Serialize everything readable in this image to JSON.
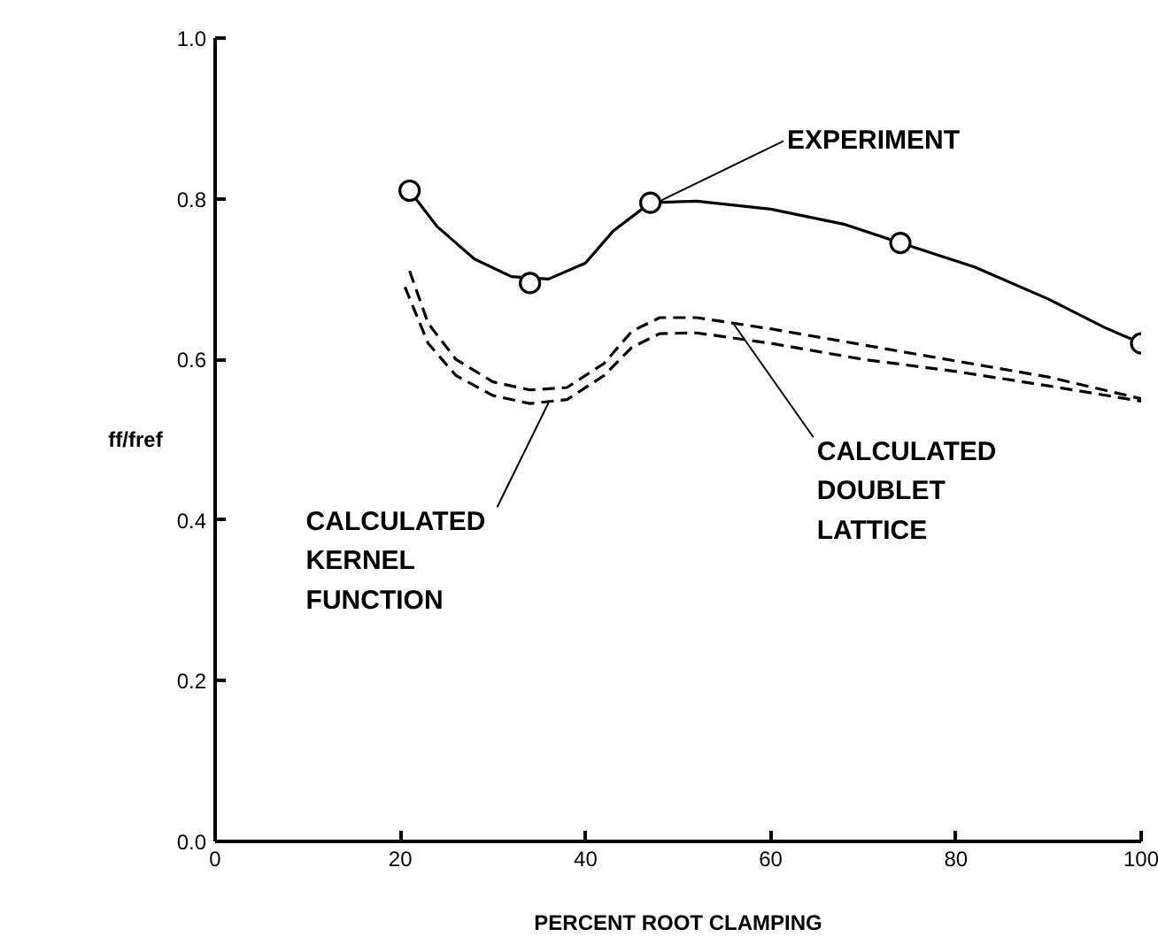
{
  "chart_data": {
    "type": "line",
    "xlabel": "PERCENT ROOT CLAMPING",
    "ylabel": "ff/fref",
    "xlim": [
      0,
      100
    ],
    "ylim": [
      0,
      1
    ],
    "xticks": [
      0,
      20,
      40,
      60,
      80,
      100
    ],
    "yticks": [
      {
        "value": 0,
        "label": "0.0"
      },
      0.2,
      0.4,
      0.6,
      0.8,
      {
        "value": 1,
        "label": "1.0"
      }
    ],
    "grid": false,
    "series": [
      {
        "color": "#000000",
        "line_style": "solid",
        "x": [
          21,
          24,
          28,
          32,
          36,
          40,
          43,
          47,
          52,
          60,
          68,
          74,
          82,
          90,
          96,
          100
        ],
        "values": [
          0.81,
          0.765,
          0.725,
          0.703,
          0.7,
          0.72,
          0.76,
          0.795,
          0.797,
          0.787,
          0.768,
          0.745,
          0.715,
          0.675,
          0.64,
          0.62
        ]
      },
      {
        "type": "scatter",
        "color": "#000000",
        "marker": "circle",
        "x": [
          21,
          34,
          47,
          74,
          100
        ],
        "values": [
          0.81,
          0.695,
          0.795,
          0.745,
          0.62
        ]
      },
      {
        "type": "line",
        "color": "#000000",
        "line_style": "dashed",
        "x": [
          20.5,
          23,
          26,
          30,
          34,
          38,
          42,
          45,
          48,
          52,
          60,
          70,
          80,
          90,
          100
        ],
        "values": [
          0.69,
          0.62,
          0.58,
          0.555,
          0.545,
          0.55,
          0.58,
          0.615,
          0.632,
          0.633,
          0.62,
          0.6,
          0.585,
          0.567,
          0.548
        ]
      },
      {
        "type": "line",
        "color": "#000000",
        "line_style": "dashed",
        "x": [
          21,
          23,
          26,
          30,
          34,
          38,
          42,
          45,
          48,
          52,
          60,
          70,
          80,
          90,
          100
        ],
        "values": [
          0.71,
          0.645,
          0.6,
          0.572,
          0.562,
          0.565,
          0.595,
          0.635,
          0.652,
          0.652,
          0.638,
          0.618,
          0.598,
          0.578,
          0.551
        ]
      }
    ],
    "annotations": [
      {
        "text": "EXPERIMENT",
        "x": 48,
        "y": 0.797
      },
      {
        "text": "CALCULATED\nKERNEL\nFUNCTION",
        "x": 36,
        "y": 0.546
      },
      {
        "text": "CALCULATED\nDOUBLET\nLATTICE",
        "x": 56,
        "y": 0.644
      }
    ]
  }
}
